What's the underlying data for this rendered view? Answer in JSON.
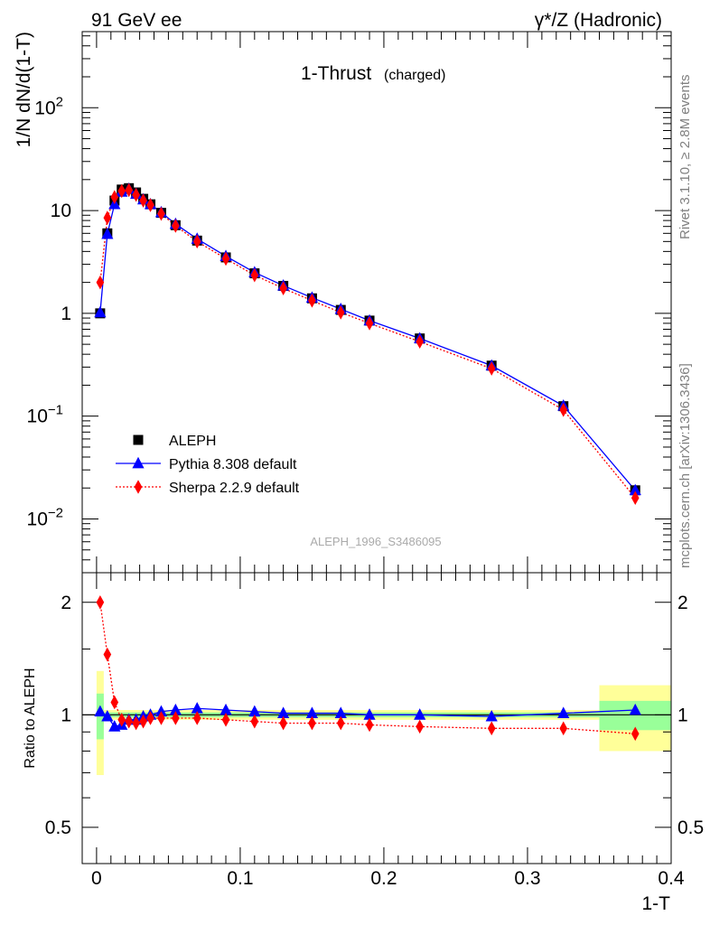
{
  "header": {
    "left": "91 GeV ee",
    "right": "γ*/Z (Hadronic)"
  },
  "side": {
    "rivet": "Rivet 3.1.10, ≥ 2.8M events",
    "mcplots": "mcplots.cern.ch [arXiv:1306.3436]"
  },
  "chart_data": {
    "type": "line",
    "title": "1-Thrust",
    "title_suffix": "(charged)",
    "analysis_id": "ALEPH_1996_S3486095",
    "xlabel": "1-T",
    "ylabel": "1/N dN/d(1-T)",
    "xlim": [
      -0.01,
      0.4
    ],
    "ylim": [
      0.003,
      550
    ],
    "yscale": "log",
    "x_ticks": [
      "0",
      "0.1",
      "0.2",
      "0.3",
      "0.4"
    ],
    "y_ticks": [
      {
        "base": "10",
        "exp": "−2"
      },
      {
        "base": "10",
        "exp": "−1"
      },
      {
        "base": "1",
        "exp": ""
      },
      {
        "base": "10",
        "exp": ""
      },
      {
        "base": "10",
        "exp": "2"
      }
    ],
    "legend_position": "bottom-left",
    "x": [
      0.0025,
      0.0075,
      0.0125,
      0.0175,
      0.0225,
      0.0275,
      0.0325,
      0.0375,
      0.045,
      0.055,
      0.07,
      0.09,
      0.11,
      0.13,
      0.15,
      0.17,
      0.19,
      0.225,
      0.275,
      0.325,
      0.375
    ],
    "series": [
      {
        "name": "ALEPH",
        "color": "#000000",
        "marker": "square",
        "line": "none",
        "values": [
          1.0,
          6.0,
          12.5,
          16.0,
          16.5,
          15.0,
          13.0,
          11.5,
          9.5,
          7.2,
          5.1,
          3.5,
          2.45,
          1.85,
          1.4,
          1.08,
          0.85,
          0.57,
          0.31,
          0.125,
          0.019
        ]
      },
      {
        "name": "Pythia 8.308 default",
        "color": "#0000ff",
        "marker": "triangle",
        "line": "solid",
        "values": [
          1.02,
          5.9,
          11.5,
          15.2,
          16.2,
          14.5,
          12.8,
          11.5,
          9.6,
          7.4,
          5.3,
          3.6,
          2.5,
          1.86,
          1.42,
          1.1,
          0.85,
          0.57,
          0.31,
          0.126,
          0.019
        ]
      },
      {
        "name": "Sherpa 2.2.9 default",
        "color": "#ff0000",
        "marker": "diamond",
        "line": "dotted",
        "values": [
          2.0,
          8.5,
          13.5,
          15.5,
          15.8,
          14.2,
          12.5,
          11.3,
          9.3,
          7.1,
          5.0,
          3.4,
          2.35,
          1.75,
          1.33,
          1.02,
          0.8,
          0.53,
          0.29,
          0.115,
          0.016
        ]
      }
    ],
    "ratio": {
      "ylabel": "Ratio to ALEPH",
      "yscale": "log",
      "ylim": [
        0.4,
        2.4
      ],
      "y_ticks": [
        "0.5",
        "1",
        "2"
      ],
      "bands": [
        {
          "x": [
            0.0,
            0.005
          ],
          "inner": [
            0.86,
            1.14
          ],
          "outer": [
            0.69,
            1.31
          ]
        },
        {
          "x": [
            0.005,
            0.35
          ],
          "inner": [
            0.985,
            1.015
          ],
          "outer": [
            0.97,
            1.03
          ]
        },
        {
          "x": [
            0.35,
            0.4
          ],
          "inner": [
            0.91,
            1.09
          ],
          "outer": [
            0.8,
            1.2
          ]
        }
      ],
      "band_colors": {
        "inner": "#99ff99",
        "outer": "#ffff99"
      },
      "series": [
        {
          "name": "Pythia 8.308 default",
          "values": [
            1.02,
            0.99,
            0.93,
            0.94,
            0.97,
            0.97,
            0.99,
            1.0,
            1.02,
            1.03,
            1.04,
            1.03,
            1.02,
            1.01,
            1.01,
            1.01,
            1.0,
            1.0,
            0.99,
            1.01,
            1.03
          ]
        },
        {
          "name": "Sherpa 2.2.9 default",
          "values": [
            2.0,
            1.45,
            1.08,
            0.97,
            0.96,
            0.95,
            0.96,
            0.98,
            0.98,
            0.98,
            0.98,
            0.97,
            0.96,
            0.95,
            0.95,
            0.95,
            0.94,
            0.93,
            0.92,
            0.92,
            0.89
          ]
        }
      ]
    }
  }
}
